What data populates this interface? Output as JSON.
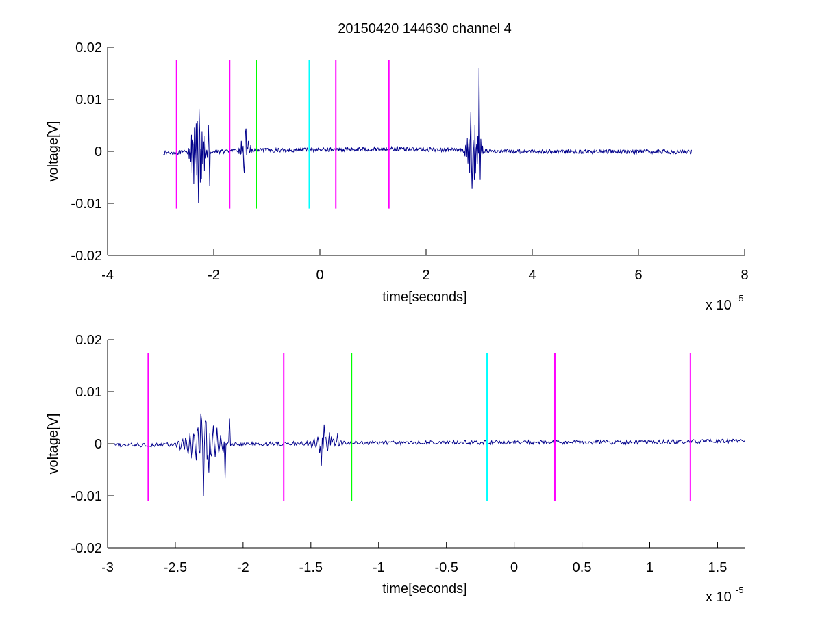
{
  "chart_data": [
    {
      "type": "line",
      "title": "20150420 144630 channel 4",
      "xlabel": "time[seconds]",
      "ylabel": "voltage[V]",
      "x_multiplier": "x 10",
      "x_multiplier_exp": "-5",
      "xlim": [
        -4,
        8
      ],
      "ylim": [
        -0.02,
        0.02
      ],
      "xticks": [
        "-4",
        "-2",
        "0",
        "2",
        "4",
        "6",
        "8"
      ],
      "xtick_values": [
        -4,
        -2,
        0,
        2,
        4,
        6,
        8
      ],
      "yticks": [
        "-0.02",
        "-0.01",
        "0",
        "0.01",
        "0.02"
      ],
      "ytick_values": [
        -0.02,
        -0.01,
        0,
        0.01,
        0.02
      ],
      "markers": [
        {
          "x": -2.7,
          "color": "#ff00ff"
        },
        {
          "x": -1.7,
          "color": "#ff00ff"
        },
        {
          "x": -1.2,
          "color": "#00ff00"
        },
        {
          "x": -0.2,
          "color": "#00ffff"
        },
        {
          "x": 0.3,
          "color": "#ff00ff"
        },
        {
          "x": 1.3,
          "color": "#ff00ff"
        }
      ],
      "marker_range": [
        -0.011,
        0.0175
      ],
      "series": [
        {
          "color": "#00008b",
          "x_range": [
            -2.95,
            7.0
          ],
          "baseline": [
            [
              -2.95,
              -0.0003
            ],
            [
              -1.0,
              0.0002
            ],
            [
              1.5,
              0.0005
            ],
            [
              3.5,
              0.0
            ],
            [
              7.0,
              -0.0001
            ]
          ],
          "noise": 0.0004,
          "bursts": [
            {
              "x": -2.3,
              "width": 0.2,
              "amp": 0.0075,
              "shape": [
                [
                  -2.31,
                  0.0058
                ],
                [
                  -2.29,
                  -0.01
                ],
                [
                  -2.27,
                  0.004
                ],
                [
                  -2.25,
                  -0.006
                ],
                [
                  -2.1,
                  0.005
                ],
                [
                  -2.08,
                  -0.0067
                ]
              ]
            },
            {
              "x": -1.4,
              "width": 0.15,
              "amp": 0.003,
              "shape": [
                [
                  -1.42,
                  -0.0042
                ],
                [
                  -1.4,
                  0.0037
                ],
                [
                  -1.35,
                  0.002
                ]
              ]
            },
            {
              "x": 2.9,
              "width": 0.2,
              "amp": 0.006,
              "shape": [
                [
                  2.84,
                  0.0075
                ],
                [
                  2.86,
                  -0.0072
                ],
                [
                  3.0,
                  0.016
                ],
                [
                  3.02,
                  -0.0055
                ]
              ]
            }
          ]
        }
      ]
    },
    {
      "type": "line",
      "title": "",
      "xlabel": "time[seconds]",
      "ylabel": "voltage[V]",
      "x_multiplier": "x 10",
      "x_multiplier_exp": "-5",
      "xlim": [
        -3.0,
        1.7
      ],
      "ylim": [
        -0.02,
        0.02
      ],
      "xticks": [
        "-3",
        "-2.5",
        "-2",
        "-1.5",
        "-1",
        "-0.5",
        "0",
        "0.5",
        "1",
        "1.5"
      ],
      "xtick_values": [
        -3,
        -2.5,
        -2,
        -1.5,
        -1,
        -0.5,
        0,
        0.5,
        1,
        1.5
      ],
      "yticks": [
        "-0.02",
        "-0.01",
        "0",
        "0.01",
        "0.02"
      ],
      "ytick_values": [
        -0.02,
        -0.01,
        0,
        0.01,
        0.02
      ],
      "markers": [
        {
          "x": -2.7,
          "color": "#ff00ff"
        },
        {
          "x": -1.7,
          "color": "#ff00ff"
        },
        {
          "x": -1.2,
          "color": "#00ff00"
        },
        {
          "x": -0.2,
          "color": "#00ffff"
        },
        {
          "x": 0.3,
          "color": "#ff00ff"
        },
        {
          "x": 1.3,
          "color": "#ff00ff"
        }
      ],
      "marker_range": [
        -0.011,
        0.0175
      ],
      "series": [
        {
          "color": "#00008b",
          "x_range": [
            -2.95,
            1.7
          ],
          "baseline": [
            [
              -2.95,
              -0.0003
            ],
            [
              -1.0,
              0.0002
            ],
            [
              1.0,
              0.0003
            ],
            [
              1.7,
              0.0006
            ]
          ],
          "noise": 0.0004,
          "bursts": [
            {
              "x": -2.3,
              "width": 0.2,
              "amp": 0.0045,
              "shape": [
                [
                  -2.31,
                  0.0058
                ],
                [
                  -2.29,
                  -0.01
                ],
                [
                  -2.27,
                  0.0042
                ],
                [
                  -2.25,
                  -0.0055
                ],
                [
                  -2.22,
                  0.0035
                ],
                [
                  -2.1,
                  0.0048
                ],
                [
                  -2.13,
                  -0.0066
                ]
              ]
            },
            {
              "x": -1.4,
              "width": 0.15,
              "amp": 0.002,
              "shape": [
                [
                  -1.42,
                  -0.0042
                ],
                [
                  -1.4,
                  0.0037
                ],
                [
                  -1.35,
                  0.0014
                ],
                [
                  -1.3,
                  0.002
                ]
              ]
            }
          ]
        }
      ]
    }
  ]
}
